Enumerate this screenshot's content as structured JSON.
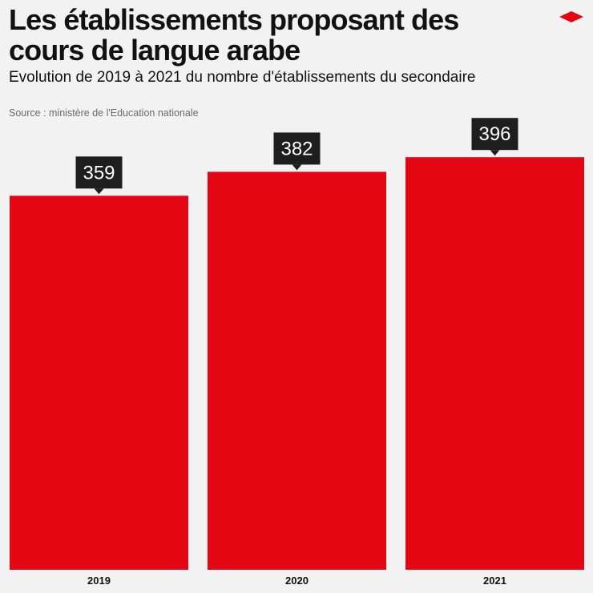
{
  "header": {
    "title": "Les établissements proposant des cours de langue arabe",
    "subtitle": "Evolution de 2019 à 2021 du nombre d'établissements du secondaire",
    "source": "Source : ministère de l'Education nationale"
  },
  "colors": {
    "bar": "#e30613",
    "label_bg": "#1e1e1e",
    "label_text": "#ffffff",
    "background": "#f2f2f2"
  },
  "chart_data": {
    "type": "bar",
    "categories": [
      "2019",
      "2020",
      "2021"
    ],
    "values": [
      359,
      382,
      396
    ],
    "title": "Les établissements proposant des cours de langue arabe",
    "subtitle": "Evolution de 2019 à 2021 du nombre d'établissements du secondaire",
    "xlabel": "",
    "ylabel": "",
    "grid": false,
    "legend": "none"
  }
}
